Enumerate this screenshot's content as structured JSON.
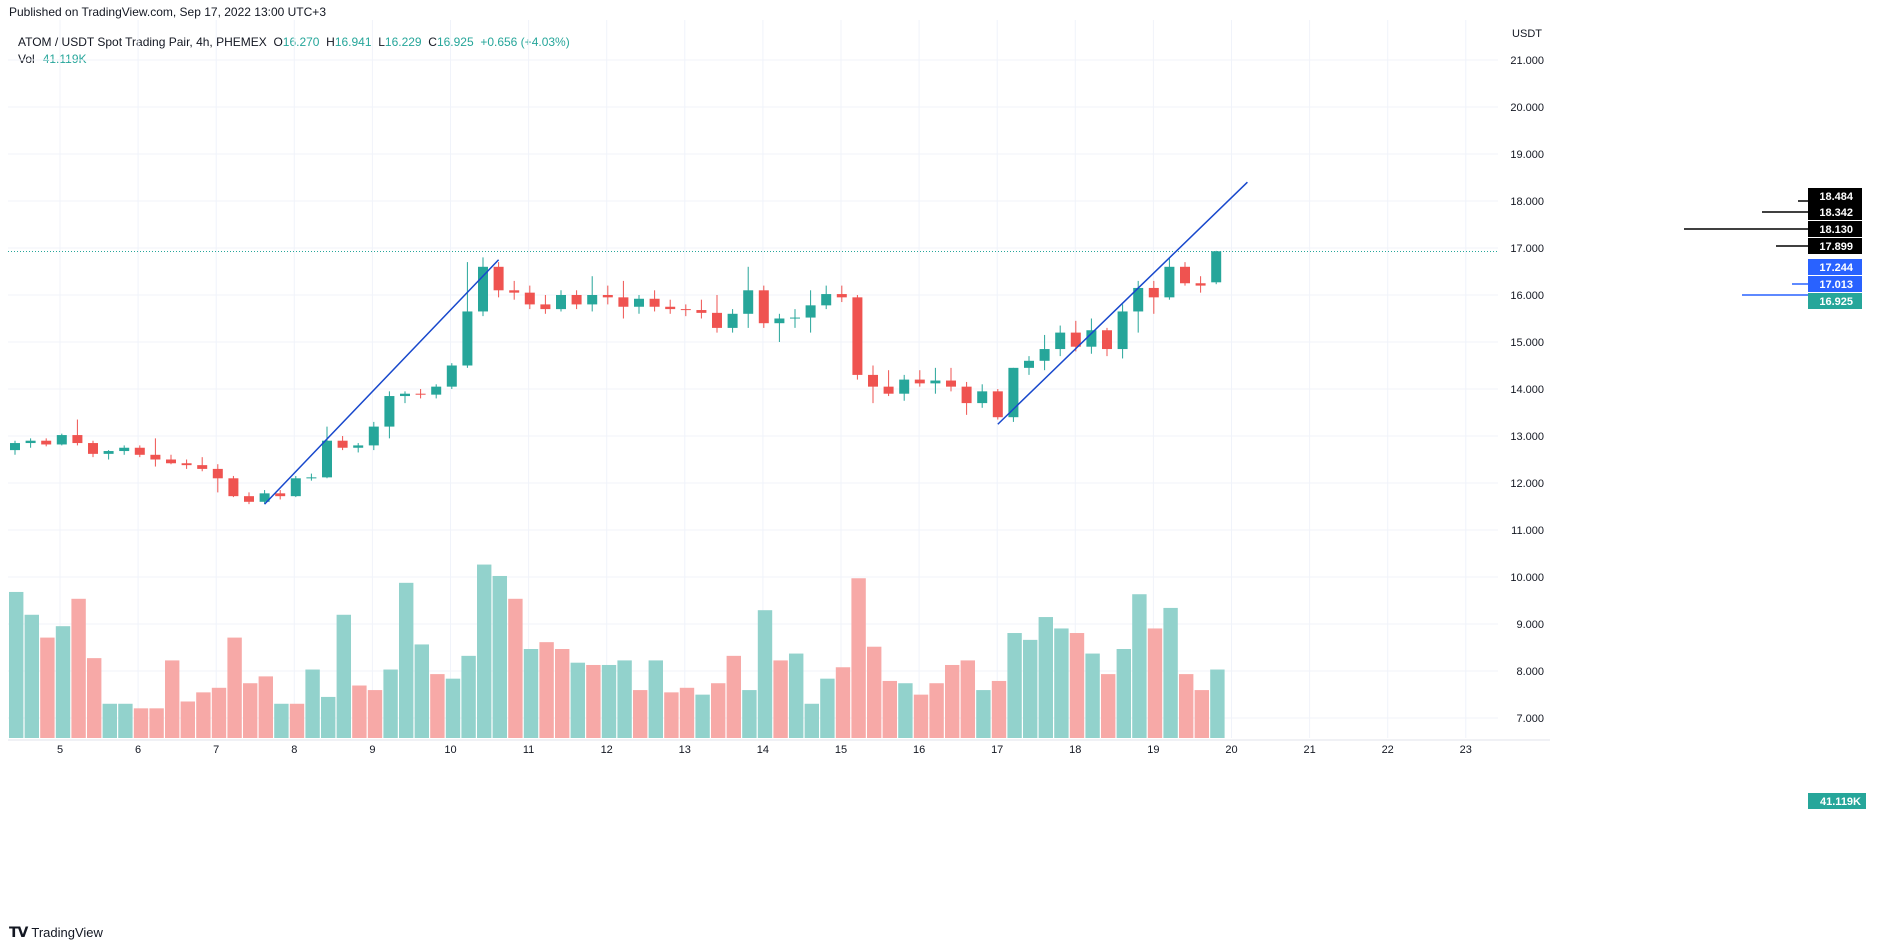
{
  "header": {
    "published": "Published on TradingView.com, Sep 17, 2022 13:00 UTC+3"
  },
  "legend": {
    "symbol": "ATOM / USDT Spot Trading Pair, 4h, PHEMEX",
    "o_label": "O",
    "o": "16.270",
    "h_label": "H",
    "h": "16.941",
    "l_label": "L",
    "l": "16.229",
    "c_label": "C",
    "c": "16.925",
    "change": "+0.656 (+4.03%)",
    "vol_label": "Vol",
    "vol": "41.119K"
  },
  "footer": {
    "brand": "TradingView"
  },
  "colors": {
    "up": "#26a69a",
    "down": "#ef5350",
    "up_vol": "#92d2cc",
    "down_vol": "#f7a9a7",
    "trend": "#1848cc",
    "grid": "#f0f3fa"
  },
  "chart_data": {
    "type": "candlestick",
    "currency": "USDT",
    "price_axis": {
      "min": 7.0,
      "max": 21.0,
      "ticks": [
        "21.000",
        "20.000",
        "19.000",
        "18.000",
        "17.000",
        "16.000",
        "15.000",
        "14.000",
        "13.000",
        "12.000",
        "11.000",
        "10.000",
        "9.000",
        "8.000",
        "7.000"
      ]
    },
    "x_ticks": [
      "5",
      "6",
      "7",
      "8",
      "9",
      "10",
      "11",
      "12",
      "13",
      "14",
      "15",
      "16",
      "17",
      "18",
      "19",
      "20",
      "21",
      "22",
      "23"
    ],
    "price_tags": [
      {
        "label": "18.484",
        "value": 18.484,
        "bg": "#000000",
        "line_from": 18.0
      },
      {
        "label": "18.342",
        "value": 18.342,
        "bg": "#000000",
        "line_from": 18.2
      },
      {
        "label": "18.130",
        "value": 18.13,
        "bg": "#000000",
        "line_from": 18.13
      },
      {
        "label": "17.899",
        "value": 17.899,
        "bg": "#000000",
        "line_from": 17.9
      },
      {
        "label": "17.244",
        "value": 17.244,
        "bg": "#2962ff"
      },
      {
        "label": "17.013",
        "value": 17.013,
        "bg": "#2962ff"
      },
      {
        "label": "16.925",
        "value": 16.925,
        "bg": "#26a69a"
      }
    ],
    "volume_tag": "41.119K",
    "last_price": 16.925,
    "candles": [
      [
        12.7,
        12.9,
        12.6,
        12.85
      ],
      [
        12.85,
        12.95,
        12.75,
        12.9
      ],
      [
        12.9,
        12.95,
        12.78,
        12.82
      ],
      [
        12.82,
        13.05,
        12.8,
        13.02
      ],
      [
        13.02,
        13.35,
        12.8,
        12.85
      ],
      [
        12.85,
        12.9,
        12.55,
        12.62
      ],
      [
        12.62,
        12.7,
        12.5,
        12.68
      ],
      [
        12.68,
        12.8,
        12.6,
        12.75
      ],
      [
        12.75,
        12.8,
        12.55,
        12.6
      ],
      [
        12.6,
        12.95,
        12.35,
        12.5
      ],
      [
        12.5,
        12.6,
        12.4,
        12.42
      ],
      [
        12.42,
        12.5,
        12.3,
        12.38
      ],
      [
        12.38,
        12.55,
        12.25,
        12.3
      ],
      [
        12.3,
        12.4,
        11.8,
        12.1
      ],
      [
        12.1,
        12.15,
        11.7,
        11.72
      ],
      [
        11.72,
        11.8,
        11.55,
        11.6
      ],
      [
        11.6,
        11.85,
        11.55,
        11.78
      ],
      [
        11.78,
        11.85,
        11.65,
        11.72
      ],
      [
        11.72,
        12.15,
        11.7,
        12.1
      ],
      [
        12.1,
        12.2,
        12.05,
        12.12
      ],
      [
        12.12,
        13.2,
        12.1,
        12.9
      ],
      [
        12.9,
        13.0,
        12.7,
        12.75
      ],
      [
        12.75,
        12.85,
        12.65,
        12.8
      ],
      [
        12.8,
        13.3,
        12.7,
        13.2
      ],
      [
        13.2,
        13.95,
        12.95,
        13.85
      ],
      [
        13.85,
        13.95,
        13.7,
        13.9
      ],
      [
        13.9,
        14.0,
        13.8,
        13.88
      ],
      [
        13.88,
        14.1,
        13.8,
        14.05
      ],
      [
        14.05,
        14.55,
        14.0,
        14.5
      ],
      [
        14.5,
        16.7,
        14.45,
        15.65
      ],
      [
        15.65,
        16.8,
        15.55,
        16.6
      ],
      [
        16.6,
        16.7,
        15.95,
        16.1
      ],
      [
        16.1,
        16.3,
        15.9,
        16.05
      ],
      [
        16.05,
        16.2,
        15.7,
        15.8
      ],
      [
        15.8,
        16.0,
        15.6,
        15.7
      ],
      [
        15.7,
        16.1,
        15.65,
        16.0
      ],
      [
        16.0,
        16.1,
        15.7,
        15.8
      ],
      [
        15.8,
        16.4,
        15.65,
        16.0
      ],
      [
        16.0,
        16.2,
        15.8,
        15.95
      ],
      [
        15.95,
        16.3,
        15.5,
        15.75
      ],
      [
        15.75,
        16.0,
        15.6,
        15.92
      ],
      [
        15.92,
        16.1,
        15.65,
        15.75
      ],
      [
        15.75,
        15.9,
        15.6,
        15.7
      ],
      [
        15.7,
        15.8,
        15.55,
        15.68
      ],
      [
        15.68,
        15.9,
        15.5,
        15.62
      ],
      [
        15.62,
        16.0,
        15.2,
        15.3
      ],
      [
        15.3,
        15.7,
        15.2,
        15.6
      ],
      [
        15.6,
        16.6,
        15.3,
        16.1
      ],
      [
        16.1,
        16.2,
        15.3,
        15.4
      ],
      [
        15.4,
        15.6,
        15.0,
        15.5
      ],
      [
        15.5,
        15.7,
        15.3,
        15.52
      ],
      [
        15.52,
        16.1,
        15.2,
        15.78
      ],
      [
        15.78,
        16.2,
        15.7,
        16.02
      ],
      [
        16.02,
        16.2,
        15.85,
        15.95
      ],
      [
        15.95,
        16.0,
        14.2,
        14.3
      ],
      [
        14.3,
        14.5,
        13.7,
        14.05
      ],
      [
        14.05,
        14.4,
        13.85,
        13.9
      ],
      [
        13.9,
        14.3,
        13.75,
        14.2
      ],
      [
        14.2,
        14.4,
        14.05,
        14.12
      ],
      [
        14.12,
        14.45,
        13.9,
        14.18
      ],
      [
        14.18,
        14.45,
        13.95,
        14.05
      ],
      [
        14.05,
        14.15,
        13.45,
        13.7
      ],
      [
        13.7,
        14.1,
        13.6,
        13.95
      ],
      [
        13.95,
        14.0,
        13.35,
        13.4
      ],
      [
        13.4,
        14.45,
        13.3,
        14.45
      ],
      [
        14.45,
        14.7,
        14.3,
        14.6
      ],
      [
        14.6,
        15.15,
        14.4,
        14.85
      ],
      [
        14.85,
        15.35,
        14.7,
        15.2
      ],
      [
        15.2,
        15.45,
        14.8,
        14.9
      ],
      [
        14.9,
        15.5,
        14.75,
        15.25
      ],
      [
        15.25,
        15.3,
        14.7,
        14.85
      ],
      [
        14.85,
        15.8,
        14.65,
        15.65
      ],
      [
        15.65,
        16.3,
        15.2,
        16.15
      ],
      [
        16.15,
        16.3,
        15.6,
        15.95
      ],
      [
        15.95,
        16.8,
        15.9,
        16.6
      ],
      [
        16.6,
        16.7,
        16.2,
        16.25
      ],
      [
        16.25,
        16.4,
        16.05,
        16.2
      ],
      [
        16.27,
        16.94,
        16.23,
        16.93
      ]
    ],
    "volume_axis": {
      "min": 6.55,
      "max": 10.45
    },
    "volumes": [
      [
        9.75,
        1
      ],
      [
        9.25,
        1
      ],
      [
        8.75,
        0
      ],
      [
        9.0,
        1
      ],
      [
        9.6,
        0
      ],
      [
        8.3,
        0
      ],
      [
        7.3,
        1
      ],
      [
        7.3,
        1
      ],
      [
        7.2,
        0
      ],
      [
        7.2,
        0
      ],
      [
        8.25,
        0
      ],
      [
        7.35,
        0
      ],
      [
        7.55,
        0
      ],
      [
        7.65,
        0
      ],
      [
        8.75,
        0
      ],
      [
        7.75,
        0
      ],
      [
        7.9,
        0
      ],
      [
        7.3,
        1
      ],
      [
        7.3,
        0
      ],
      [
        8.05,
        1
      ],
      [
        7.45,
        1
      ],
      [
        9.25,
        1
      ],
      [
        7.7,
        0
      ],
      [
        7.6,
        0
      ],
      [
        8.05,
        1
      ],
      [
        9.95,
        1
      ],
      [
        8.6,
        1
      ],
      [
        7.95,
        0
      ],
      [
        7.85,
        1
      ],
      [
        8.35,
        1
      ],
      [
        10.35,
        1
      ],
      [
        10.1,
        1
      ],
      [
        9.6,
        0
      ],
      [
        8.5,
        1
      ],
      [
        8.65,
        0
      ],
      [
        8.5,
        0
      ],
      [
        8.2,
        1
      ],
      [
        8.15,
        0
      ],
      [
        8.15,
        1
      ],
      [
        8.25,
        1
      ],
      [
        7.6,
        0
      ],
      [
        8.25,
        1
      ],
      [
        7.55,
        0
      ],
      [
        7.65,
        0
      ],
      [
        7.5,
        1
      ],
      [
        7.75,
        0
      ],
      [
        8.35,
        0
      ],
      [
        7.6,
        1
      ],
      [
        9.35,
        1
      ],
      [
        8.25,
        0
      ],
      [
        8.4,
        1
      ],
      [
        7.3,
        1
      ],
      [
        7.85,
        1
      ],
      [
        8.1,
        0
      ],
      [
        10.05,
        0
      ],
      [
        8.55,
        0
      ],
      [
        7.8,
        0
      ],
      [
        7.75,
        1
      ],
      [
        7.5,
        0
      ],
      [
        7.75,
        0
      ],
      [
        8.15,
        0
      ],
      [
        8.25,
        0
      ],
      [
        7.6,
        1
      ],
      [
        7.8,
        0
      ],
      [
        8.85,
        1
      ],
      [
        8.7,
        1
      ],
      [
        9.2,
        1
      ],
      [
        8.95,
        1
      ],
      [
        8.85,
        0
      ],
      [
        8.4,
        1
      ],
      [
        7.95,
        0
      ],
      [
        8.5,
        1
      ],
      [
        9.7,
        1
      ],
      [
        8.95,
        0
      ],
      [
        9.4,
        1
      ],
      [
        7.95,
        0
      ],
      [
        7.6,
        0
      ],
      [
        8.05,
        1
      ]
    ],
    "trendlines": [
      {
        "from": [
          16,
          11.55
        ],
        "to": [
          31,
          16.75
        ]
      },
      {
        "from": [
          63,
          13.25
        ],
        "to": [
          79,
          18.4
        ]
      }
    ]
  }
}
